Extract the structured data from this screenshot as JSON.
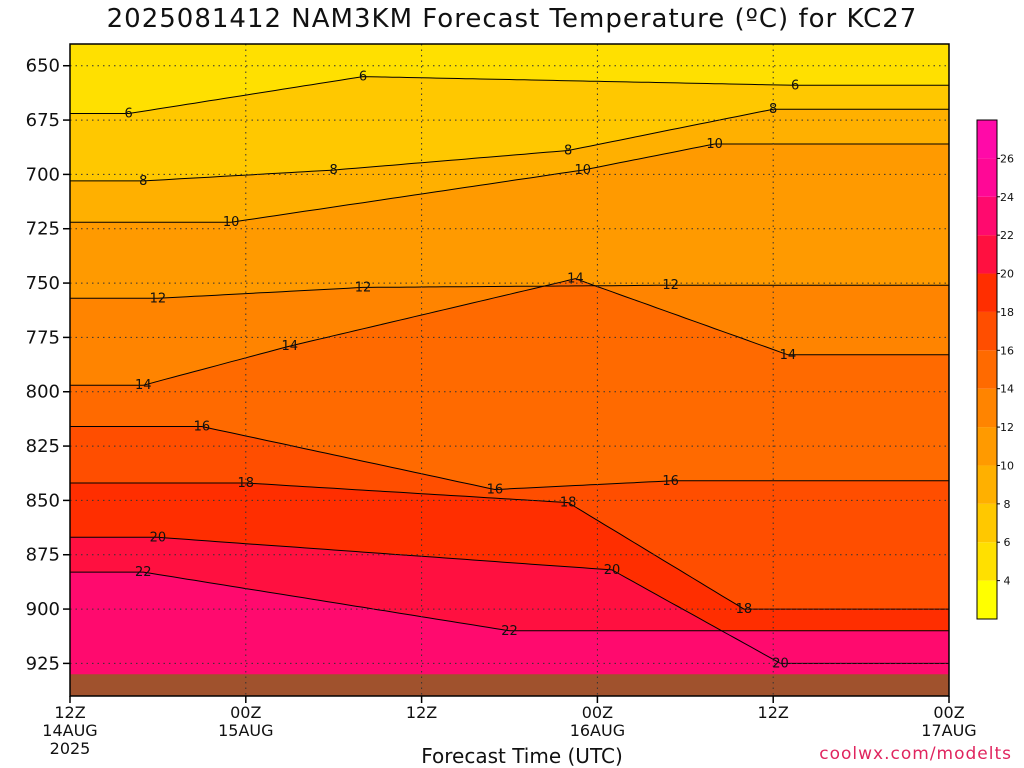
{
  "chart_data": {
    "type": "heatmap",
    "title": "2025081412 NAM3KM Forecast Temperature (ºC) for KC27",
    "xlabel": "Forecast Time (UTC)",
    "ylabel": "",
    "credit": "coolwx.com/modelts",
    "ylim": [
      940,
      640
    ],
    "y_ticks": [
      650,
      675,
      700,
      725,
      750,
      775,
      800,
      825,
      850,
      875,
      900,
      925
    ],
    "x_ticks": [
      {
        "label": "12Z",
        "date": "14AUG",
        "year": "2025",
        "hour": 0
      },
      {
        "label": "00Z",
        "date": "15AUG",
        "hour": 12
      },
      {
        "label": "12Z",
        "date": "",
        "hour": 24
      },
      {
        "label": "00Z",
        "date": "16AUG",
        "hour": 36
      },
      {
        "label": "12Z",
        "date": "",
        "hour": 48
      },
      {
        "label": "00Z",
        "date": "17AUG",
        "hour": 60
      }
    ],
    "xlim": [
      0,
      60
    ],
    "grid": true,
    "colorbar_ticks": [
      4,
      6,
      8,
      10,
      12,
      14,
      16,
      18,
      20,
      22,
      24,
      26
    ],
    "colorbar_range": [
      2,
      28
    ],
    "color_levels": [
      {
        "min": 2,
        "color": "#ffff00"
      },
      {
        "min": 4,
        "color": "#ffe000"
      },
      {
        "min": 6,
        "color": "#ffc800"
      },
      {
        "min": 8,
        "color": "#ffb000"
      },
      {
        "min": 10,
        "color": "#ff9a00"
      },
      {
        "min": 12,
        "color": "#ff8400"
      },
      {
        "min": 14,
        "color": "#ff6a00"
      },
      {
        "min": 16,
        "color": "#ff4e00"
      },
      {
        "min": 18,
        "color": "#ff2e00"
      },
      {
        "min": 20,
        "color": "#ff1040"
      },
      {
        "min": 22,
        "color": "#ff0a6e"
      },
      {
        "min": 24,
        "color": "#ff0896"
      },
      {
        "min": 26,
        "color": "#ff0aa8"
      }
    ],
    "contours": [
      {
        "level": 6,
        "labels": [
          {
            "hour": 20,
            "p": 655
          },
          {
            "hour": 4,
            "p": 672
          },
          {
            "hour": 49.5,
            "p": 659
          }
        ]
      },
      {
        "level": 8,
        "labels": [
          {
            "hour": 5,
            "p": 703
          },
          {
            "hour": 18,
            "p": 698
          },
          {
            "hour": 34,
            "p": 689
          },
          {
            "hour": 48,
            "p": 670
          }
        ]
      },
      {
        "level": 10,
        "labels": [
          {
            "hour": 11,
            "p": 722
          },
          {
            "hour": 35,
            "p": 698
          },
          {
            "hour": 44,
            "p": 686
          }
        ]
      },
      {
        "level": 12,
        "labels": [
          {
            "hour": 6,
            "p": 757
          },
          {
            "hour": 20,
            "p": 752
          },
          {
            "hour": 41,
            "p": 751
          }
        ]
      },
      {
        "level": 14,
        "labels": [
          {
            "hour": 5,
            "p": 797
          },
          {
            "hour": 15,
            "p": 779
          },
          {
            "hour": 34.5,
            "p": 748
          },
          {
            "hour": 49,
            "p": 783
          }
        ]
      },
      {
        "level": 16,
        "labels": [
          {
            "hour": 9,
            "p": 816
          },
          {
            "hour": 29,
            "p": 845
          },
          {
            "hour": 41,
            "p": 841
          }
        ]
      },
      {
        "level": 18,
        "labels": [
          {
            "hour": 12,
            "p": 842
          },
          {
            "hour": 34,
            "p": 851
          },
          {
            "hour": 46,
            "p": 900
          }
        ]
      },
      {
        "level": 20,
        "labels": [
          {
            "hour": 6,
            "p": 867
          },
          {
            "hour": 37,
            "p": 882
          },
          {
            "hour": 48.5,
            "p": 925
          }
        ]
      },
      {
        "level": 22,
        "labels": [
          {
            "hour": 5,
            "p": 883
          },
          {
            "hour": 30,
            "p": 910
          }
        ]
      }
    ],
    "surface_pressure": 930
  }
}
